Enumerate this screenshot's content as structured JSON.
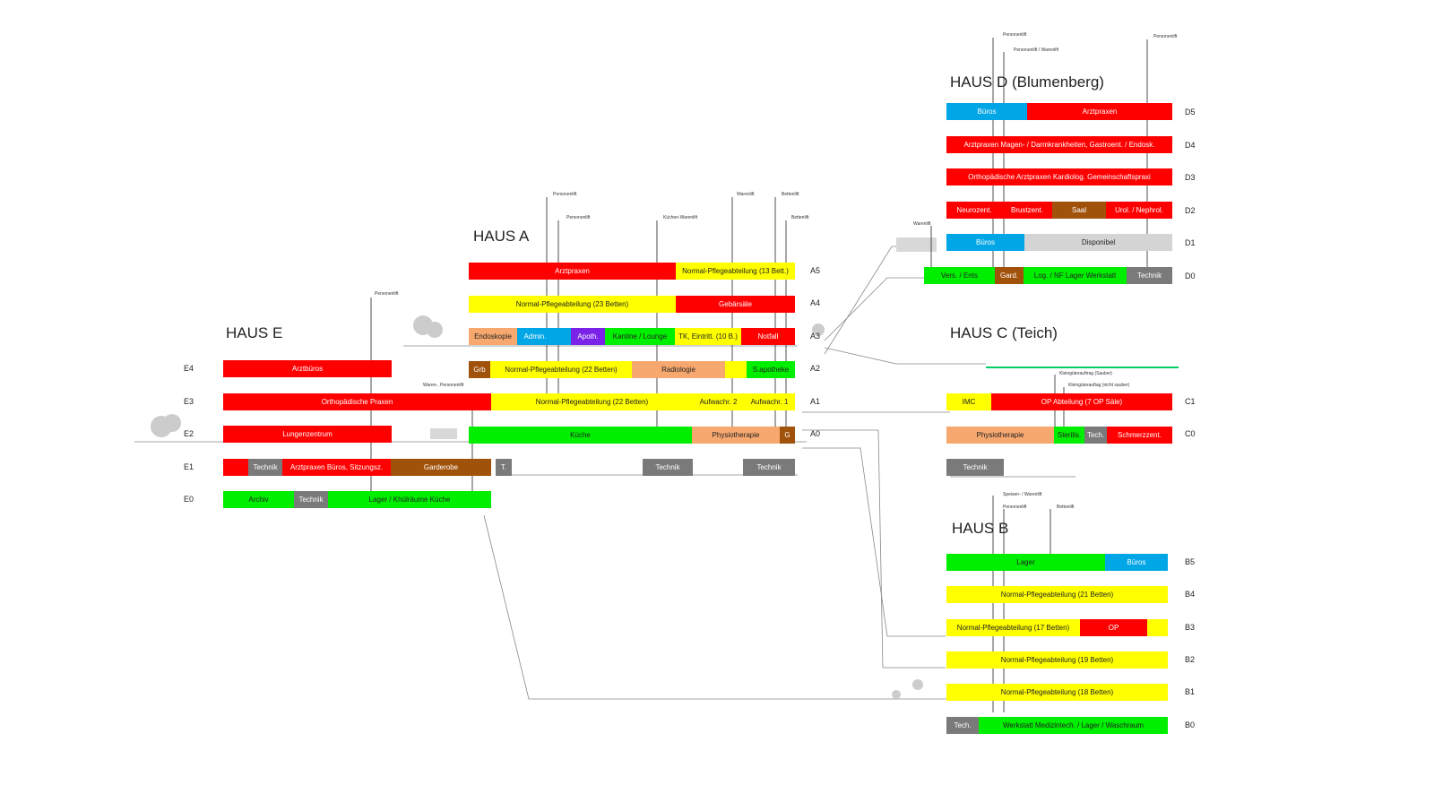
{
  "colors": {
    "red": "#ff0000",
    "yellow": "#ffff00",
    "green": "#00ee00",
    "blue": "#00a6e6",
    "brown": "#a0520a",
    "grey": "#7a7a7a",
    "lightgrey": "#d4d4d4",
    "peach": "#f7a86f",
    "purple": "#7a22e8",
    "mint": "#8ff2c0"
  },
  "houses": {
    "e": {
      "title": "HAUS E"
    },
    "a": {
      "title": "HAUS A"
    },
    "d": {
      "title": "HAUS D (Blumenberg)"
    },
    "c": {
      "title": "HAUS C (Teich)"
    },
    "b": {
      "title": "HAUS B"
    }
  },
  "floor_labels": {
    "E4": "E4",
    "E3": "E3",
    "E2": "E2",
    "E1": "E1",
    "E0": "E0",
    "A5": "A5",
    "A4": "A4",
    "A3": "A3",
    "A2": "A2",
    "A1": "A1",
    "A0": "A0",
    "D5": "D5",
    "D4": "D4",
    "D3": "D3",
    "D2": "D2",
    "D1": "D1",
    "D0": "D0",
    "C1": "C1",
    "C0": "C0",
    "B5": "B5",
    "B4": "B4",
    "B3": "B3",
    "B2": "B2",
    "B1": "B1",
    "B0": "B0"
  },
  "lift_labels": {
    "e_personenlift": "Personenlift",
    "e_waren_personenlift": "Waren-, Personenlift",
    "a_personenlift_1": "Personenlift",
    "a_personenlift_2": "Personenlift",
    "a_kuechen_warenlift": "Küchen-Warenlift",
    "a_warenlift": "Warenlift",
    "a_bettenlift_1": "Bettenlift",
    "a_bettenlift_2": "Bettenlift",
    "d_personenlift_1": "Personenlift",
    "d_personenlift_warenlift": "Personenlift / Warenlift",
    "d_personenlift_2": "Personenlift",
    "d_warenlift": "Warenlift",
    "c_kleinguter_sauber": "Kleingüterauftrag (Sauber)",
    "c_kleinguter_nicht_sauber": "Kleingüterauftag (nicht sauber)",
    "b_speisen_warenlift": "Speisen- / Warenlift",
    "b_personenlift": "Personenlift",
    "b_bettenlift": "Bettenlift"
  },
  "segments": {
    "E4": [
      {
        "label": "Arztbüros",
        "color": "red"
      }
    ],
    "E3": [
      {
        "label": "Orthopädische Praxen",
        "color": "red"
      }
    ],
    "E2": [
      {
        "label": "Lungenzentrum",
        "color": "red"
      }
    ],
    "E1": [
      {
        "label": "",
        "color": "red"
      },
      {
        "label": "Technik",
        "color": "grey"
      },
      {
        "label": "Arztpraxen Büros, Sitzungsz.",
        "color": "red"
      },
      {
        "label": "Garderobe",
        "color": "brown"
      }
    ],
    "E0": [
      {
        "label": "Archiv",
        "color": "green"
      },
      {
        "label": "Technik",
        "color": "grey"
      },
      {
        "label": "Lager / Khülräume Küche",
        "color": "green"
      }
    ],
    "A5": [
      {
        "label": "Arztpraxen",
        "color": "red"
      },
      {
        "label": "Normal-Pflegeabteilung (13 Bett.)",
        "color": "yellow"
      }
    ],
    "A4": [
      {
        "label": "Normal-Pflegeabteilung (23 Betten)",
        "color": "yellow"
      },
      {
        "label": "Gebärsäle",
        "color": "red"
      }
    ],
    "A3": [
      {
        "label": "Endoskopie",
        "color": "peach"
      },
      {
        "label": "Admin.",
        "color": "blue"
      },
      {
        "label": "",
        "color": "blue"
      },
      {
        "label": "Apoth.",
        "color": "purple"
      },
      {
        "label": "Kantine / Lounge",
        "color": "green"
      },
      {
        "label": "TK, Eintritt. (10 B.)",
        "color": "yellow"
      },
      {
        "label": "Notfall",
        "color": "red"
      }
    ],
    "A2": [
      {
        "label": "Grb",
        "color": "brown"
      },
      {
        "label": "Normal-Pflegeabteilung (22 Betten)",
        "color": "yellow"
      },
      {
        "label": "Radiologie",
        "color": "peach"
      },
      {
        "label": "",
        "color": "yellow"
      },
      {
        "label": "S.apotheke",
        "color": "green"
      }
    ],
    "A1": [
      {
        "label": "Normal-Pflegeabteilung (22 Betten)",
        "color": "yellow"
      },
      {
        "label": "Aufwachr. 2",
        "color": "yellow"
      },
      {
        "label": "Aufwachr. 1",
        "color": "yellow"
      }
    ],
    "A0": [
      {
        "label": "Küche",
        "color": "green"
      },
      {
        "label": "Physiotherapie",
        "color": "peach"
      },
      {
        "label": "G",
        "color": "brown"
      },
      {
        "label": "",
        "color": "peach"
      }
    ],
    "A-1": [
      {
        "label": "T.",
        "color": "grey"
      },
      {
        "label": "Technik",
        "color": "grey"
      },
      {
        "label": "Technik",
        "color": "grey"
      }
    ],
    "D5": [
      {
        "label": "Büros",
        "color": "blue"
      },
      {
        "label": "Arztpraxen",
        "color": "red"
      }
    ],
    "D4": [
      {
        "label": "Arztpraxen Magen- / Darmkrankheiten, Gastroent. / Endosk.",
        "color": "red"
      }
    ],
    "D3": [
      {
        "label": "Orthopädische Arztpraxen     Kardiolog. Gemeinschaftspraxi",
        "color": "red"
      }
    ],
    "D2": [
      {
        "label": "Neurozent.",
        "color": "red"
      },
      {
        "label": "Brustzent.",
        "color": "red"
      },
      {
        "label": "Saal",
        "color": "brown"
      },
      {
        "label": "Urol. / Nephrol.",
        "color": "red"
      }
    ],
    "D1": [
      {
        "label": "Büros",
        "color": "blue"
      },
      {
        "label": "Disponibel",
        "color": "lightgrey"
      }
    ],
    "D0": [
      {
        "label": "Vers. / Ents",
        "color": "green"
      },
      {
        "label": "Gard.",
        "color": "brown"
      },
      {
        "label": "Log. / NF Lager   Werkstatt",
        "color": "green"
      },
      {
        "label": "Technik",
        "color": "grey"
      }
    ],
    "C1": [
      {
        "label": "IMC",
        "color": "yellow"
      },
      {
        "label": "OP Abteilung (7 OP Säle)",
        "color": "red"
      }
    ],
    "C0": [
      {
        "label": "Physiotherapie",
        "color": "peach"
      },
      {
        "label": "Sterilis.",
        "color": "green"
      },
      {
        "label": "Tech.",
        "color": "grey"
      },
      {
        "label": "Schmerzzent.",
        "color": "red"
      }
    ],
    "C-1": [
      {
        "label": "Technik",
        "color": "grey"
      }
    ],
    "B5": [
      {
        "label": "Lager",
        "color": "green"
      },
      {
        "label": "Büros",
        "color": "blue"
      }
    ],
    "B4": [
      {
        "label": "Normal-Pflegeabteilung (21 Betten)",
        "color": "yellow"
      }
    ],
    "B3": [
      {
        "label": "Normal-Pflegeabteilung (17 Betten)",
        "color": "yellow"
      },
      {
        "label": "OP",
        "color": "red"
      },
      {
        "label": "",
        "color": "yellow"
      }
    ],
    "B2": [
      {
        "label": "Normal-Pflegeabteilung (19 Betten)",
        "color": "yellow"
      }
    ],
    "B1": [
      {
        "label": "Normal-Pflegeabteilung (18 Betten)",
        "color": "yellow"
      }
    ],
    "B0": [
      {
        "label": "Tech.",
        "color": "grey"
      },
      {
        "label": "Werkstatt Medizintech. / Lager / Waschraum",
        "color": "green"
      }
    ]
  }
}
